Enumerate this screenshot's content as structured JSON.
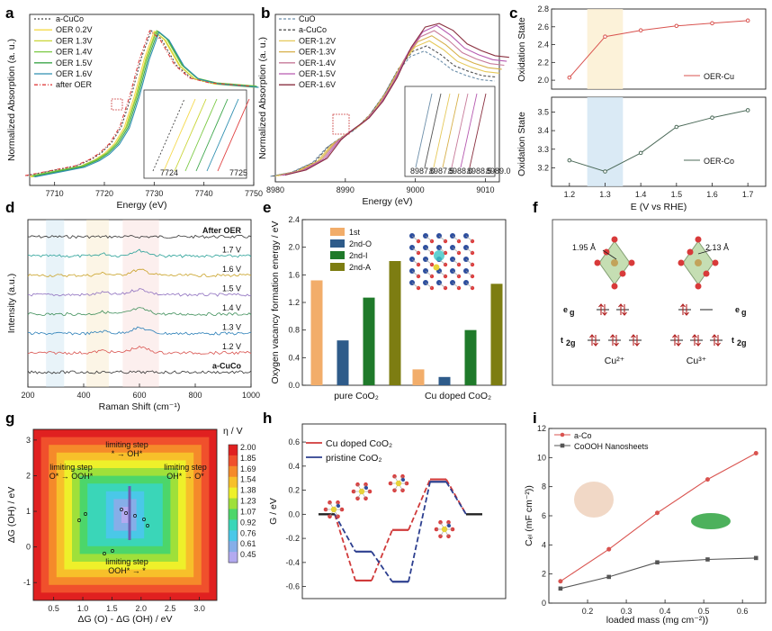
{
  "panel_labels": [
    "a",
    "b",
    "c",
    "d",
    "e",
    "f",
    "g",
    "h",
    "i"
  ],
  "chart_data": [
    {
      "id": "a",
      "type": "line",
      "xlabel": "Energy (eV)",
      "ylabel": "Normalized Absorption (a. u.)",
      "xlim": [
        7705,
        7750
      ],
      "xticks": [
        "7710",
        "7720",
        "7730",
        "7740",
        "7750"
      ],
      "legend": [
        "a-CuCo",
        "OER 0.2V",
        "OER 1.3V",
        "OER 1.4V",
        "OER 1.5V",
        "OER 1.6V",
        "after OER"
      ],
      "colors": [
        "#444444",
        "#f5d94a",
        "#c9d535",
        "#7ac943",
        "#3ca64a",
        "#2f8fb0",
        "#e04040"
      ],
      "x": [
        7705,
        7710,
        7715,
        7718,
        7720,
        7722,
        7724,
        7726,
        7728,
        7730,
        7732,
        7735,
        7738,
        7742,
        7746,
        7750
      ],
      "y": [
        0.06,
        0.09,
        0.12,
        0.16,
        0.2,
        0.26,
        0.36,
        0.55,
        0.78,
        0.95,
        0.9,
        0.74,
        0.66,
        0.63,
        0.62,
        0.61
      ],
      "inset_ticks": [
        "7724",
        "7725"
      ]
    },
    {
      "id": "b",
      "type": "line",
      "xlabel": "Energy (eV)",
      "ylabel": "Normalized Absorption (a. u.)",
      "xlim": [
        8980,
        9012
      ],
      "xticks": [
        "8980",
        "8990",
        "9000",
        "9010"
      ],
      "legend": [
        "CuO",
        "a-CuCo",
        "OER-1.2V",
        "OER-1.3V",
        "OER-1.4V",
        "OER-1.5V",
        "OER-1.6V"
      ],
      "colors": [
        "#6d8faa",
        "#555555",
        "#e6c95a",
        "#d7b04a",
        "#c77a9a",
        "#b65ab0",
        "#8a3040"
      ],
      "x": [
        8980,
        8983,
        8986,
        8988,
        8990,
        8992,
        8994,
        8996,
        8998,
        9000,
        9002,
        9004,
        9006,
        9008,
        9010,
        9012
      ],
      "y": [
        0.04,
        0.07,
        0.14,
        0.25,
        0.32,
        0.38,
        0.48,
        0.62,
        0.8,
        0.92,
        0.96,
        0.9,
        0.82,
        0.78,
        0.75,
        0.74
      ],
      "inset_ticks": [
        "8987.0",
        "8987.5",
        "8988.0",
        "8988.5",
        "8989.0"
      ]
    },
    {
      "id": "c-top",
      "type": "line",
      "ylabel": "Oxidation State",
      "x": [
        1.2,
        1.3,
        1.4,
        1.5,
        1.6,
        1.7
      ],
      "y": [
        2.03,
        2.49,
        2.56,
        2.61,
        2.64,
        2.67
      ],
      "ylim": [
        1.9,
        2.8
      ],
      "yticks": [
        "2.0",
        "2.2",
        "2.4",
        "2.6",
        "2.8"
      ],
      "legend": "OER-Cu",
      "color": "#d9534f"
    },
    {
      "id": "c-bottom",
      "type": "line",
      "xlabel": "E (V vs RHE)",
      "ylabel": "Oxidation State",
      "x": [
        1.2,
        1.3,
        1.4,
        1.5,
        1.6,
        1.7
      ],
      "y": [
        3.24,
        3.18,
        3.28,
        3.42,
        3.47,
        3.51
      ],
      "ylim": [
        3.1,
        3.58
      ],
      "yticks": [
        "3.2",
        "3.3",
        "3.4",
        "3.5"
      ],
      "xticks": [
        "1.2",
        "1.3",
        "1.4",
        "1.5",
        "1.6",
        "1.7"
      ],
      "legend": "OER-Co",
      "color": "#4d6b5a"
    },
    {
      "id": "d",
      "type": "line",
      "xlabel": "Raman Shift (cm⁻¹)",
      "ylabel": "Intensity (a.u.)",
      "xlim": [
        200,
        1000
      ],
      "xticks": [
        "200",
        "400",
        "600",
        "800",
        "1000"
      ],
      "labels": [
        "After OER",
        "1.7 V",
        "1.6 V",
        "1.5 V",
        "1.4 V",
        "1.3 V",
        "1.2 V",
        "a-CuCo"
      ],
      "colors": [
        "#333333",
        "#2aa198",
        "#c9a227",
        "#8e6fbf",
        "#3f8f5a",
        "#2b7fb8",
        "#d9534f",
        "#333333"
      ]
    },
    {
      "id": "e",
      "type": "bar",
      "ylabel": "Oxygen vacancy formation energy / eV",
      "categories": [
        "pure CoO₂",
        "Cu doped CoO₂"
      ],
      "ylim": [
        0,
        2.4
      ],
      "yticks": [
        "0.0",
        "0.4",
        "0.8",
        "1.2",
        "1.6",
        "2.0",
        "2.4"
      ],
      "series": [
        {
          "name": "1st",
          "values": [
            1.52,
            0.23
          ],
          "color": "#f2ad6a"
        },
        {
          "name": "2nd-O",
          "values": [
            0.65,
            0.12
          ],
          "color": "#2e5b8a"
        },
        {
          "name": "2nd-I",
          "values": [
            1.27,
            0.8
          ],
          "color": "#1f7a2a"
        },
        {
          "name": "2nd-A",
          "values": [
            1.8,
            1.47
          ],
          "color": "#7d7d12"
        }
      ]
    },
    {
      "id": "f",
      "type": "diagram",
      "bond_lengths": [
        "1.95 Å",
        "2.13 Å"
      ],
      "orbital_labels": [
        "e",
        "g",
        "t",
        "2g"
      ],
      "ions": [
        "Cu²⁺",
        "Cu³⁺"
      ]
    },
    {
      "id": "g",
      "type": "heatmap",
      "xlabel": "ΔG (O) - ΔG (OH) / eV",
      "ylabel": "ΔG (OH) / eV",
      "xticks": [
        "0.5",
        "1.0",
        "1.5",
        "2.0",
        "2.5",
        "3.0"
      ],
      "yticks": [
        "-1",
        "0",
        "1",
        "2",
        "3"
      ],
      "colorbar_title": "η / V",
      "colorbar_ticks": [
        "2.00",
        "1.85",
        "1.69",
        "1.54",
        "1.38",
        "1.23",
        "1.07",
        "0.92",
        "0.76",
        "0.61",
        "0.45"
      ],
      "annotations": [
        {
          "line1": "limiting step",
          "line2": "* → OH*"
        },
        {
          "line1": "limiting step",
          "line2": "O* → OOH*"
        },
        {
          "line1": "limiting step",
          "line2": "OH* → O*"
        },
        {
          "line1": "limiting step",
          "line2": "OOH* → *"
        }
      ]
    },
    {
      "id": "h",
      "type": "line",
      "ylabel": "G / eV",
      "ylim": [
        -0.7,
        0.75
      ],
      "yticks": [
        "0.6",
        "0.4",
        "0.2",
        "0.0",
        "-0.2",
        "-0.4",
        "-0.6"
      ],
      "series": [
        {
          "name": "Cu doped CoO₂",
          "color": "#d03a3a",
          "values": [
            0.0,
            -0.55,
            -0.13,
            0.29,
            0.0
          ]
        },
        {
          "name": "pristine CoO₂",
          "color": "#2d3f8f",
          "values": [
            0.0,
            -0.31,
            -0.56,
            0.27,
            0.0
          ]
        }
      ]
    },
    {
      "id": "i",
      "type": "line",
      "xlabel": "loaded mass (mg cm⁻²))",
      "ylabel": "Cₑₗ (mF cm⁻²))",
      "xlim": [
        0.1,
        0.66
      ],
      "ylim": [
        0,
        12
      ],
      "xticks": [
        "0.2",
        "0.3",
        "0.4",
        "0.5",
        "0.6"
      ],
      "yticks": [
        "0",
        "2",
        "4",
        "6",
        "8",
        "10",
        "12"
      ],
      "series": [
        {
          "name": "a-Co",
          "color": "#d9534f",
          "x": [
            0.13,
            0.255,
            0.38,
            0.51,
            0.635
          ],
          "y": [
            1.5,
            3.7,
            6.2,
            8.5,
            10.3
          ]
        },
        {
          "name": "CoOOH Nanosheets",
          "color": "#555555",
          "x": [
            0.13,
            0.255,
            0.38,
            0.51,
            0.635
          ],
          "y": [
            1.0,
            1.8,
            2.8,
            3.0,
            3.1
          ]
        }
      ]
    }
  ]
}
